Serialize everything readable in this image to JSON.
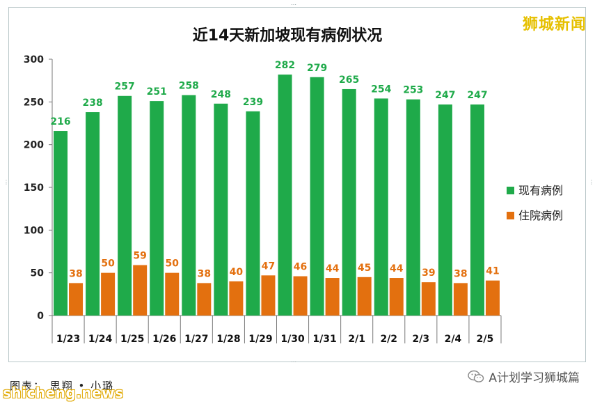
{
  "watermark": "狮城新闻",
  "caption": "图表：  思翔 • 小璐",
  "site_mark": "shicheng.news",
  "account": "A计划学习狮城篇",
  "colors": {
    "current": "#1faa4a",
    "hospital": "#e3700f"
  },
  "chart_data": {
    "type": "bar",
    "title": "近14天新加坡现有病例状况",
    "categories": [
      "1/23",
      "1/24",
      "1/25",
      "1/26",
      "1/27",
      "1/28",
      "1/29",
      "1/30",
      "1/31",
      "2/1",
      "2/2",
      "2/3",
      "2/4",
      "2/5"
    ],
    "series": [
      {
        "name": "现有病例",
        "values": [
          216,
          238,
          257,
          251,
          258,
          248,
          239,
          282,
          279,
          265,
          254,
          253,
          247,
          247
        ]
      },
      {
        "name": "住院病例",
        "values": [
          38,
          50,
          59,
          50,
          38,
          40,
          47,
          46,
          44,
          45,
          44,
          39,
          38,
          41
        ]
      }
    ],
    "ylim": [
      0,
      300
    ],
    "yticks": [
      0,
      50,
      100,
      150,
      200,
      250,
      300
    ],
    "grid": false,
    "legend": "right"
  }
}
